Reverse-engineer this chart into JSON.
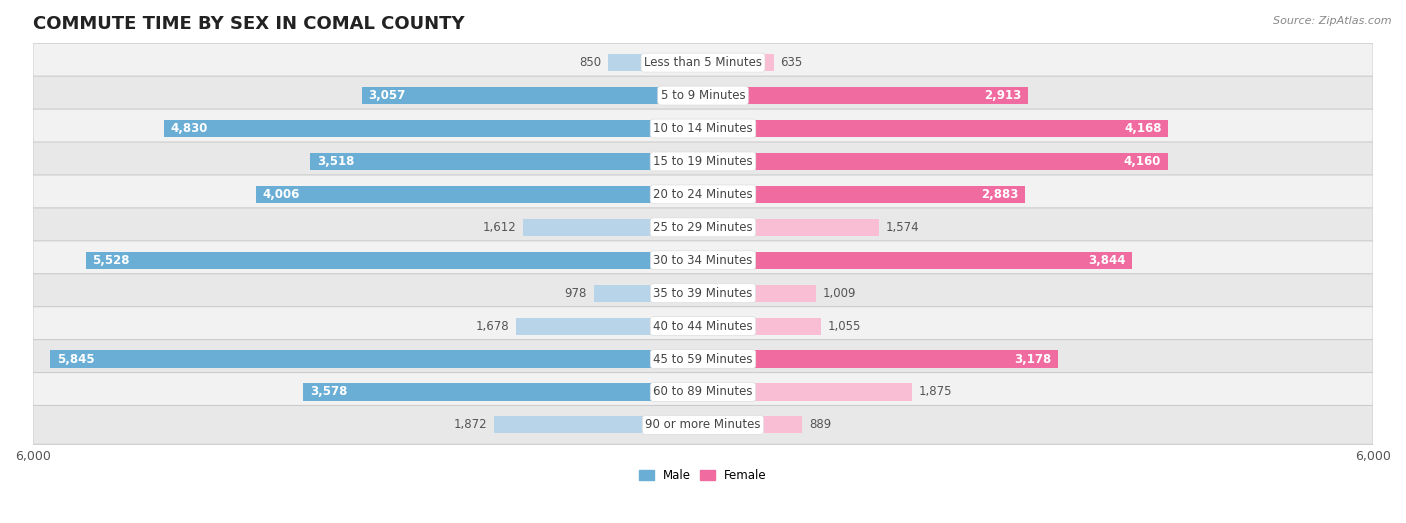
{
  "title": "COMMUTE TIME BY SEX IN COMAL COUNTY",
  "source": "Source: ZipAtlas.com",
  "categories": [
    "Less than 5 Minutes",
    "5 to 9 Minutes",
    "10 to 14 Minutes",
    "15 to 19 Minutes",
    "20 to 24 Minutes",
    "25 to 29 Minutes",
    "30 to 34 Minutes",
    "35 to 39 Minutes",
    "40 to 44 Minutes",
    "45 to 59 Minutes",
    "60 to 89 Minutes",
    "90 or more Minutes"
  ],
  "male_values": [
    850,
    3057,
    4830,
    3518,
    4006,
    1612,
    5528,
    978,
    1678,
    5845,
    3578,
    1872
  ],
  "female_values": [
    635,
    2913,
    4168,
    4160,
    2883,
    1574,
    3844,
    1009,
    1055,
    3178,
    1875,
    889
  ],
  "male_color_large": "#6aaed6",
  "male_color_small": "#b8d4e8",
  "female_color_large": "#f06ba0",
  "female_color_small": "#f9bdd4",
  "male_label": "Male",
  "female_label": "Female",
  "xlim": 6000,
  "large_threshold": 2000,
  "title_fontsize": 13,
  "label_fontsize": 8.5,
  "tick_fontsize": 9,
  "value_fontsize": 8.5,
  "cat_fontsize": 8.5
}
